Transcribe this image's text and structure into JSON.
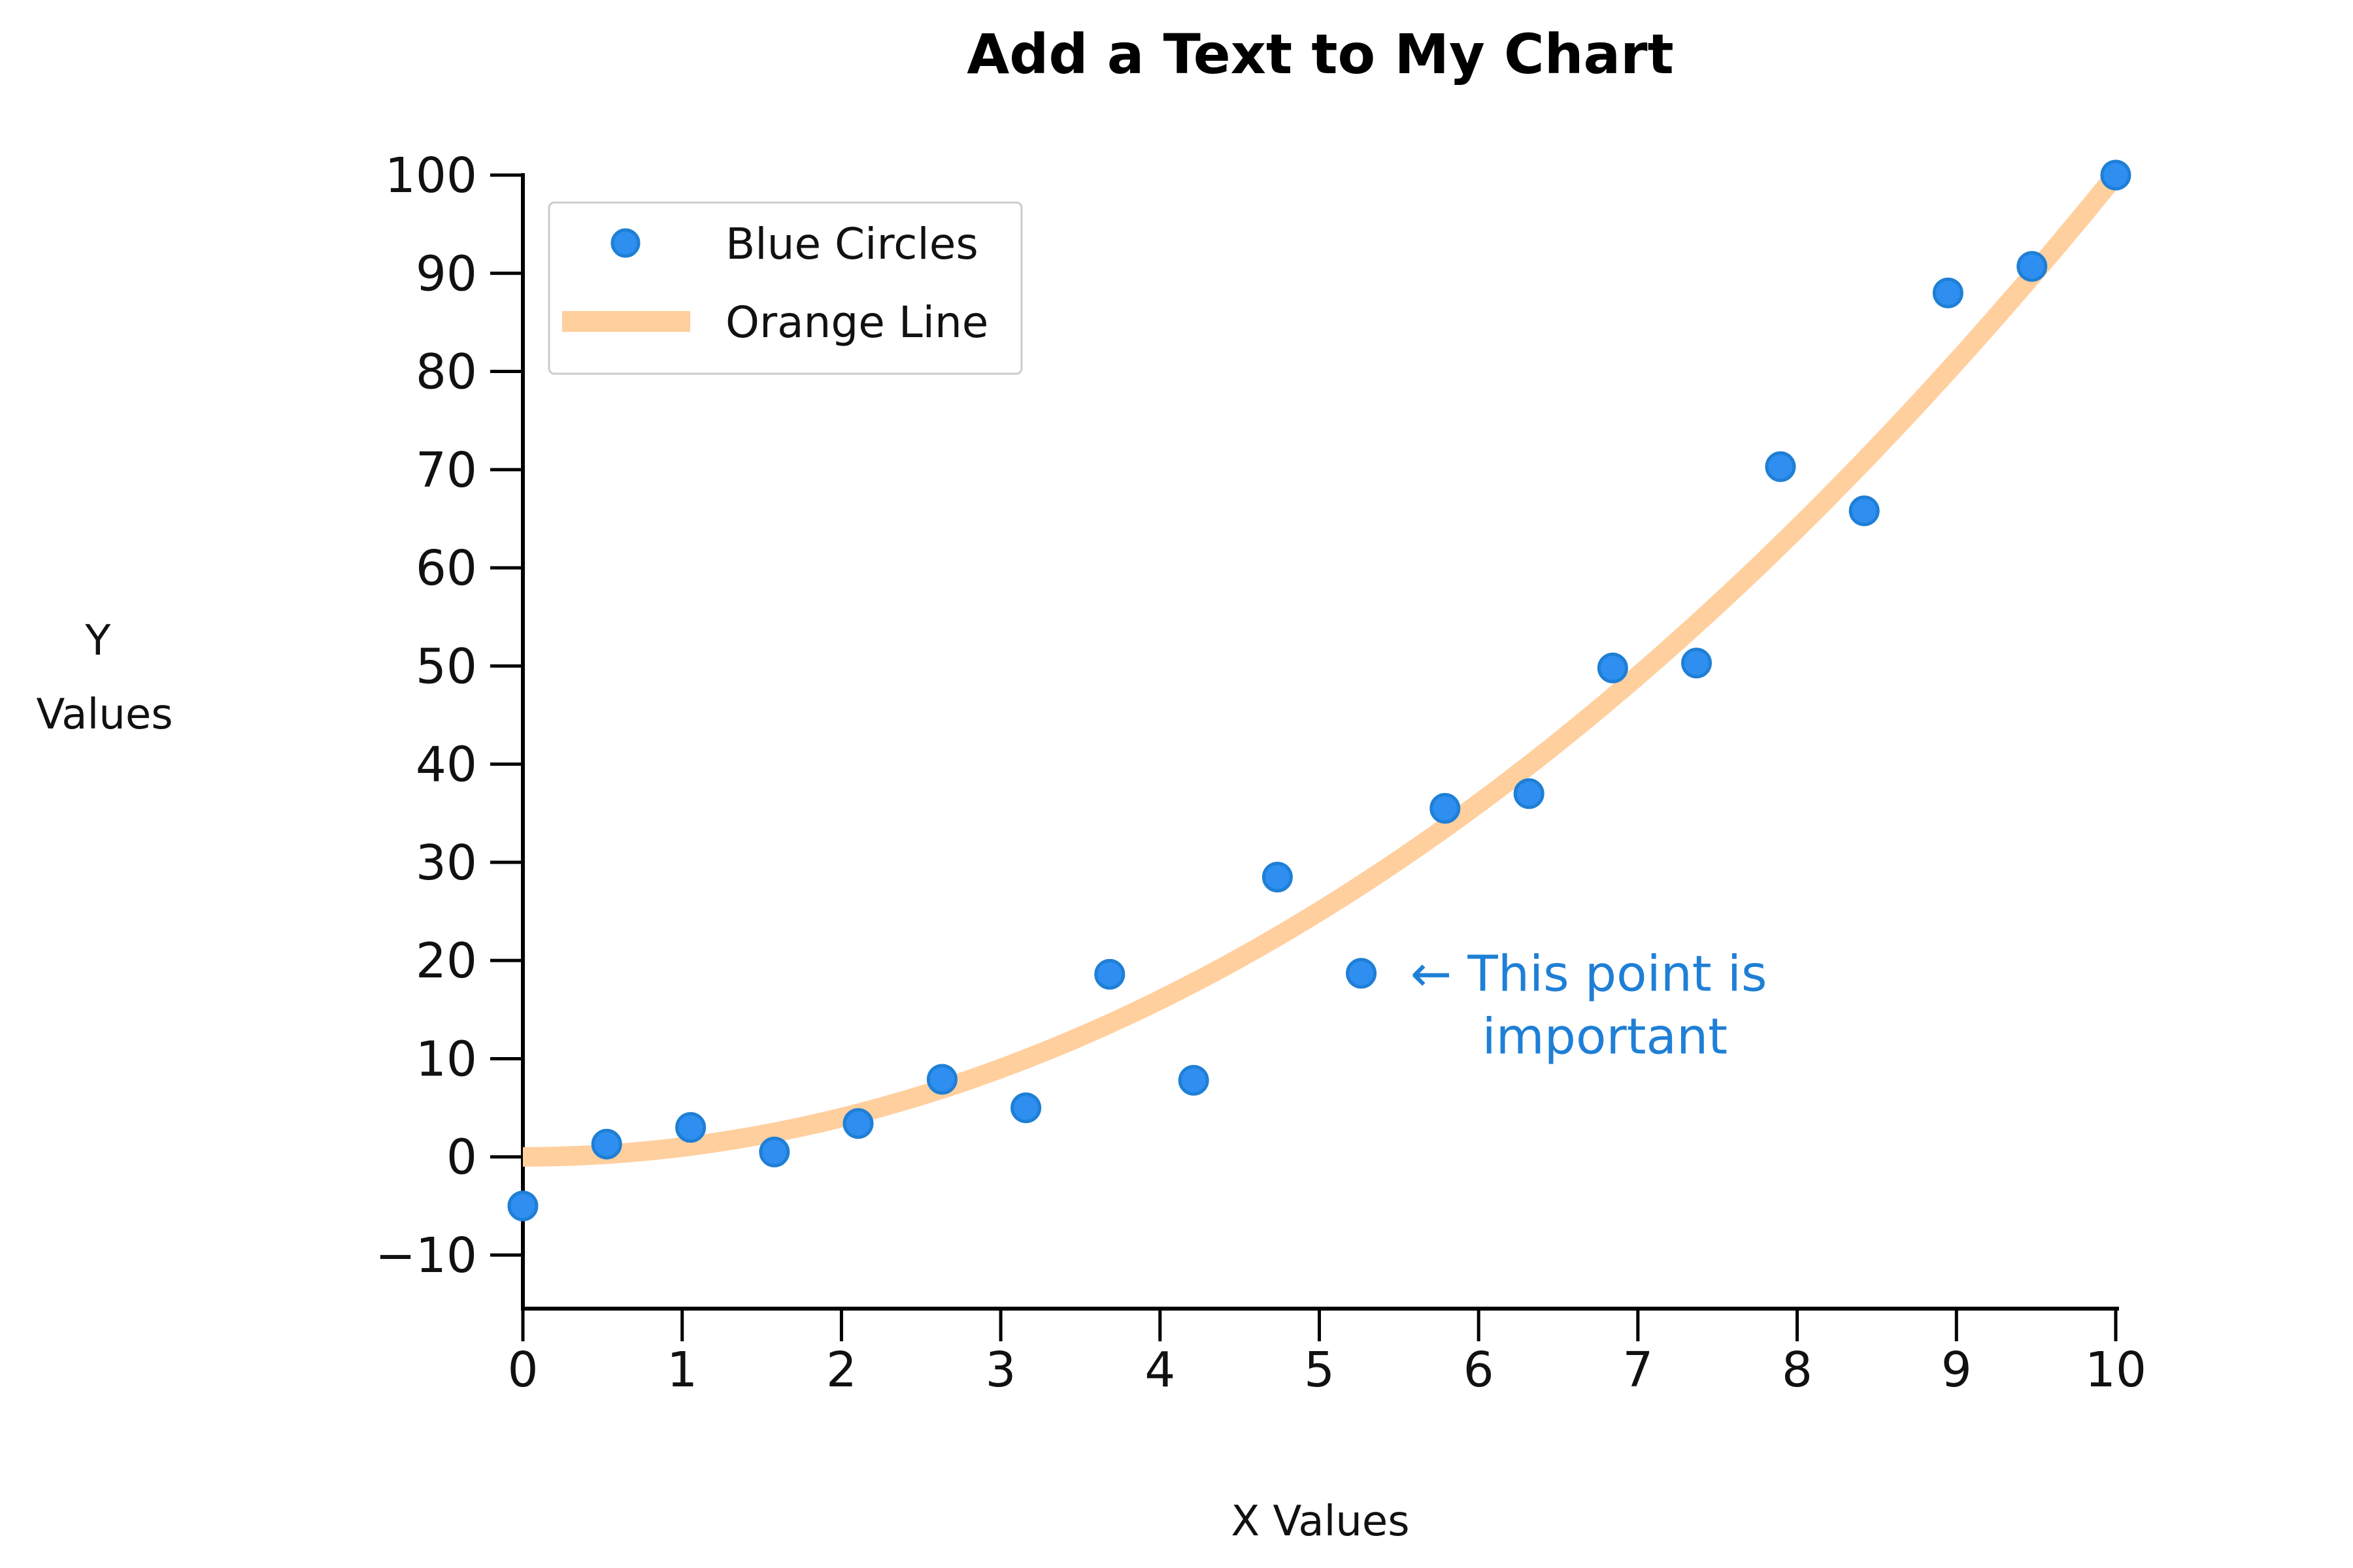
{
  "chart_data": {
    "type": "scatter",
    "title": "Add a Text to My Chart",
    "xlabel": "X Values",
    "ylabel": [
      "Y",
      "Values"
    ],
    "xlim": [
      0,
      10
    ],
    "ylim": [
      -15,
      100
    ],
    "xticks": [
      0,
      1,
      2,
      3,
      4,
      5,
      6,
      7,
      8,
      9,
      10
    ],
    "yticks": [
      -10,
      0,
      10,
      20,
      30,
      40,
      50,
      60,
      70,
      80,
      90,
      100
    ],
    "grid": false,
    "legend_position": "top-left",
    "series": [
      {
        "name": "Blue Circles",
        "kind": "scatter",
        "color": "#2e8ff0",
        "x": [
          0.0,
          0.526,
          1.053,
          1.579,
          2.105,
          2.632,
          3.158,
          3.684,
          4.211,
          4.737,
          5.263,
          5.789,
          6.316,
          6.842,
          7.368,
          7.895,
          8.421,
          8.947,
          9.474,
          10.0
        ],
        "y": [
          -5.0,
          1.3,
          3.0,
          0.5,
          3.4,
          7.9,
          5.0,
          18.6,
          7.8,
          28.5,
          18.7,
          35.5,
          37.0,
          49.8,
          50.3,
          70.3,
          65.8,
          88.0,
          90.7,
          100.0
        ]
      },
      {
        "name": "Orange Line",
        "kind": "line",
        "color": "#ffcf9e",
        "function": "y = x^2",
        "x_range": [
          0,
          10
        ]
      }
    ],
    "annotations": [
      {
        "text_lines": [
          "← This point is",
          "important"
        ],
        "x": 5.263,
        "y": 18.7,
        "color": "#1f7fd6"
      }
    ]
  }
}
